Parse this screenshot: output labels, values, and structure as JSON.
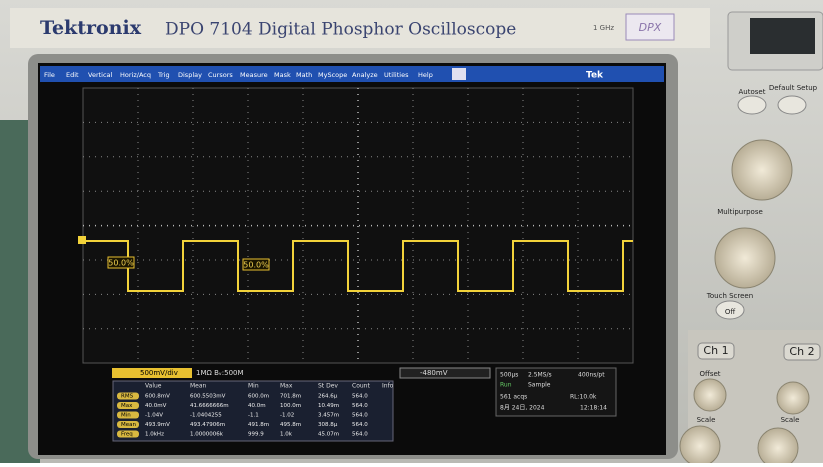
{
  "header": {
    "brand": "Tektronix",
    "model": "DPO 7104",
    "description": "Digital Phosphor Oscilloscope",
    "bandwidth": "1 GHz",
    "badge": "DPX"
  },
  "menu": {
    "items": [
      "File",
      "Edit",
      "Vertical",
      "Horiz/Acq",
      "Trig",
      "Display",
      "Cursors",
      "Measure",
      "Mask",
      "Math",
      "MyScope",
      "Analyze",
      "Utilities",
      "Help"
    ],
    "logo": "Tek"
  },
  "waveform": {
    "labels": [
      "50.0%",
      "50.0%"
    ]
  },
  "status": {
    "channel_scale": "500mV/div",
    "coupling": "1MΩ Bᵥ:500M",
    "trigger": "-480mV",
    "timebase": "500µs",
    "sample_rate": "2.5MS/s",
    "resolution": "400ns/pt",
    "mode": "Run",
    "acq": "Sample",
    "acqs": "561 acqs",
    "record_length": "RL:10.0k",
    "date": "8月 24日, 2024",
    "time": "12:18:14"
  },
  "table": {
    "headers": [
      "",
      "Value",
      "Mean",
      "Min",
      "Max",
      "St Dev",
      "Count",
      "Info"
    ],
    "rows": [
      [
        "RMS",
        "600.8mV",
        "600.5503mV",
        "600.0m",
        "701.8m",
        "264.6µ",
        "564.0"
      ],
      [
        "Max",
        "40.0mV",
        "41.6666666m",
        "40.0m",
        "100.0m",
        "10.49m",
        "564.0"
      ],
      [
        "Min",
        "-1.04V",
        "-1.0404255",
        "-1.1",
        "-1.02",
        "3.457m",
        "564.0"
      ],
      [
        "Mean",
        "493.9mV",
        "493.47906m",
        "491.8m",
        "495.8m",
        "308.8µ",
        "564.0"
      ],
      [
        "Freq",
        "1.0kHz",
        "1.0000006k",
        "999.9",
        "1.0k",
        "45.07m",
        "564.0"
      ]
    ]
  },
  "panel": {
    "autoset": "Autoset",
    "default_setup": "Default Setup",
    "multipurpose": "Multipurpose",
    "touch_screen": "Touch Screen",
    "off": "Off",
    "ch1": "Ch 1",
    "ch2": "Ch 2",
    "offset": "Offset",
    "scale1": "Scale",
    "scale2": "Scale"
  }
}
